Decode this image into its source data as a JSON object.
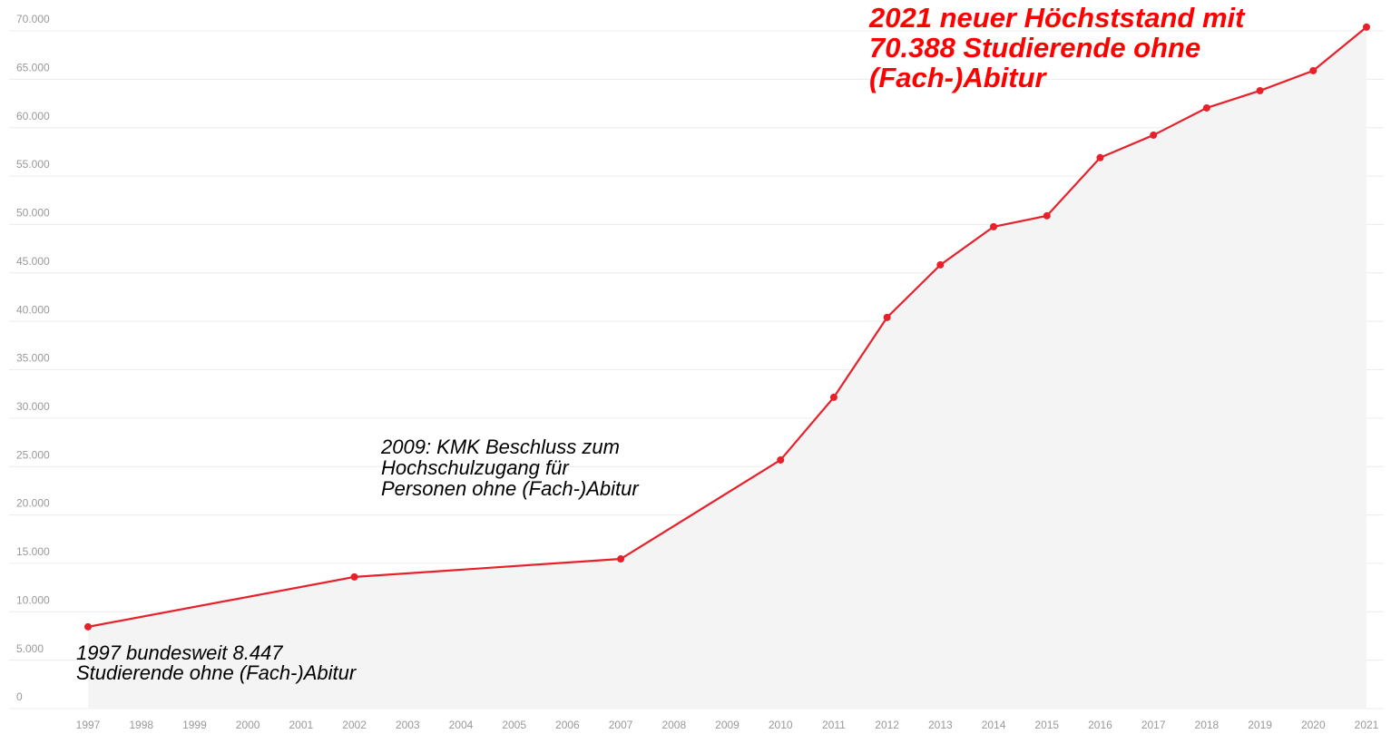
{
  "chart_data": {
    "type": "line",
    "x": [
      1997,
      2002,
      2007,
      2010,
      2011,
      2012,
      2013,
      2014,
      2015,
      2016,
      2017,
      2018,
      2019,
      2020,
      2021
    ],
    "series": [
      {
        "name": "Studierende ohne (Fach-)Abitur",
        "color": "#e8202a",
        "values": [
          8447,
          13600,
          15460,
          25680,
          32150,
          40400,
          45830,
          49770,
          50900,
          56900,
          59230,
          62040,
          63820,
          65890,
          70388
        ]
      }
    ],
    "xlim": [
      1997,
      2021
    ],
    "xticks": [
      1997,
      1998,
      1999,
      2000,
      2001,
      2002,
      2003,
      2004,
      2005,
      2006,
      2007,
      2008,
      2009,
      2010,
      2011,
      2012,
      2013,
      2014,
      2015,
      2016,
      2017,
      2018,
      2019,
      2020,
      2021
    ],
    "ylim": [
      0,
      70000
    ],
    "yticks": [
      0,
      {
        "value": 5000,
        "label": "5.000"
      },
      {
        "value": 10000,
        "label": "10.000"
      },
      {
        "value": 15000,
        "label": "15.000"
      },
      {
        "value": 20000,
        "label": "20.000"
      },
      {
        "value": 25000,
        "label": "25.000"
      },
      {
        "value": 30000,
        "label": "30.000"
      },
      {
        "value": 35000,
        "label": "35.000"
      },
      {
        "value": 40000,
        "label": "40.000"
      },
      {
        "value": 45000,
        "label": "45.000"
      },
      {
        "value": 50000,
        "label": "50.000"
      },
      {
        "value": 55000,
        "label": "55.000"
      },
      {
        "value": 60000,
        "label": "60.000"
      },
      {
        "value": 65000,
        "label": "65.000"
      },
      {
        "value": 70000,
        "label": "70.000"
      }
    ],
    "grid": true,
    "annotations": [
      {
        "lines": [
          "1997 bundesweit 8.447",
          "Studierende ohne (Fach-)Abitur"
        ],
        "color": "#000000"
      },
      {
        "lines": [
          "2009: KMK Beschluss zum",
          "Hochschulzugang für",
          "Personen ohne (Fach-)Abitur"
        ],
        "color": "#000000"
      },
      {
        "lines": [
          "2021 neuer Höchststand mit",
          "70.388 Studierende ohne",
          "(Fach-)Abitur"
        ],
        "color": "#ff0000"
      }
    ]
  }
}
